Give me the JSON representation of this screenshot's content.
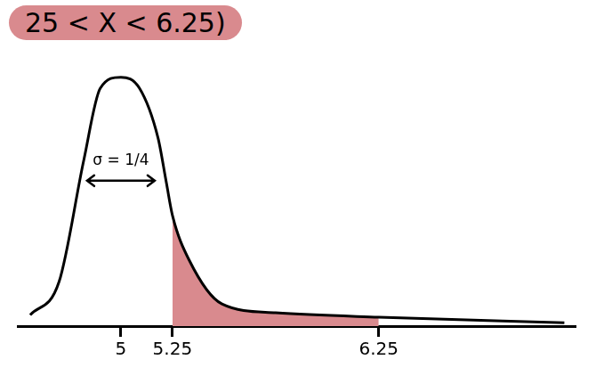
{
  "chart_data": {
    "type": "line",
    "title": "25 < X < 6.25)",
    "annotations": [
      {
        "text": "σ = 1/4"
      }
    ],
    "x": [
      4.56,
      4.7,
      4.82,
      4.9,
      5.0,
      5.09,
      5.18,
      5.22,
      5.25,
      5.33,
      5.49,
      5.75,
      6.25,
      7.15
    ],
    "values": [
      10,
      40,
      150,
      215,
      225,
      215,
      170,
      130,
      100,
      60,
      20,
      12,
      8,
      3
    ],
    "color": "#000000",
    "highlight": {
      "from": 5.25,
      "to": 6.25,
      "color": "#d98a8e"
    },
    "xlim": [
      4.5,
      7.2
    ],
    "xticks": [
      5,
      5.25,
      6.25
    ],
    "ylim": [
      0,
      240
    ],
    "tick_labels": "x",
    "grid": false
  }
}
